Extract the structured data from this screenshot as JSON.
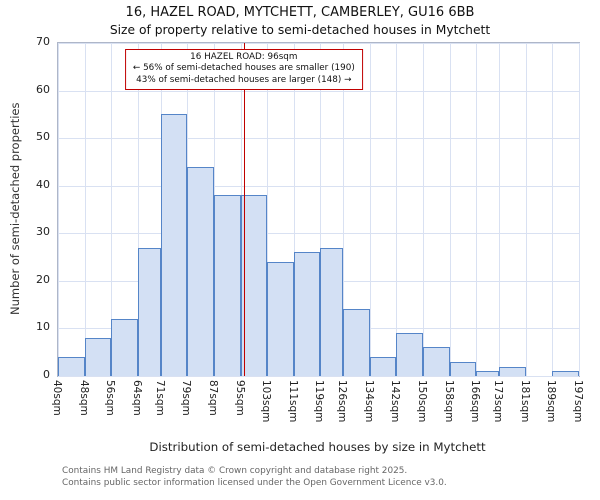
{
  "annotation": {
    "line1": "16 HAZEL ROAD: 96sqm",
    "line2": "← 56% of semi-detached houses are smaller (190)",
    "line3": "43% of semi-detached houses are larger (148) →"
  },
  "footer": {
    "line1": "Contains HM Land Registry data © Crown copyright and database right 2025.",
    "line2": "Contains public sector information licensed under the Open Government Licence v3.0."
  },
  "chart_data": {
    "type": "bar",
    "title": "16, HAZEL ROAD, MYTCHETT, CAMBERLEY, GU16 6BB",
    "subtitle": "Size of property relative to semi-detached houses in Mytchett",
    "xlabel": "Distribution of semi-detached houses by size in Mytchett",
    "ylabel": "Number of semi-detached properties",
    "ylim": [
      0,
      70
    ],
    "yticks": [
      0,
      10,
      20,
      30,
      40,
      50,
      60,
      70
    ],
    "bin_edges": [
      40,
      48,
      56,
      64,
      71,
      79,
      87,
      95,
      103,
      111,
      119,
      126,
      134,
      142,
      150,
      158,
      166,
      173,
      181,
      189,
      197
    ],
    "tick_labels": [
      "40sqm",
      "48sqm",
      "56sqm",
      "64sqm",
      "71sqm",
      "79sqm",
      "87sqm",
      "95sqm",
      "103sqm",
      "111sqm",
      "119sqm",
      "126sqm",
      "134sqm",
      "142sqm",
      "150sqm",
      "158sqm",
      "166sqm",
      "173sqm",
      "181sqm",
      "189sqm",
      "197sqm"
    ],
    "values": [
      4,
      8,
      12,
      27,
      55,
      44,
      38,
      38,
      24,
      26,
      27,
      14,
      4,
      9,
      6,
      3,
      1,
      2,
      0,
      1
    ],
    "marker_value": 96,
    "marker_color": "#c00000",
    "bar_fill": "#d3e0f4",
    "bar_border": "#5585c8",
    "grid_color": "#d9e1f2",
    "grid": true,
    "legend": "none"
  }
}
